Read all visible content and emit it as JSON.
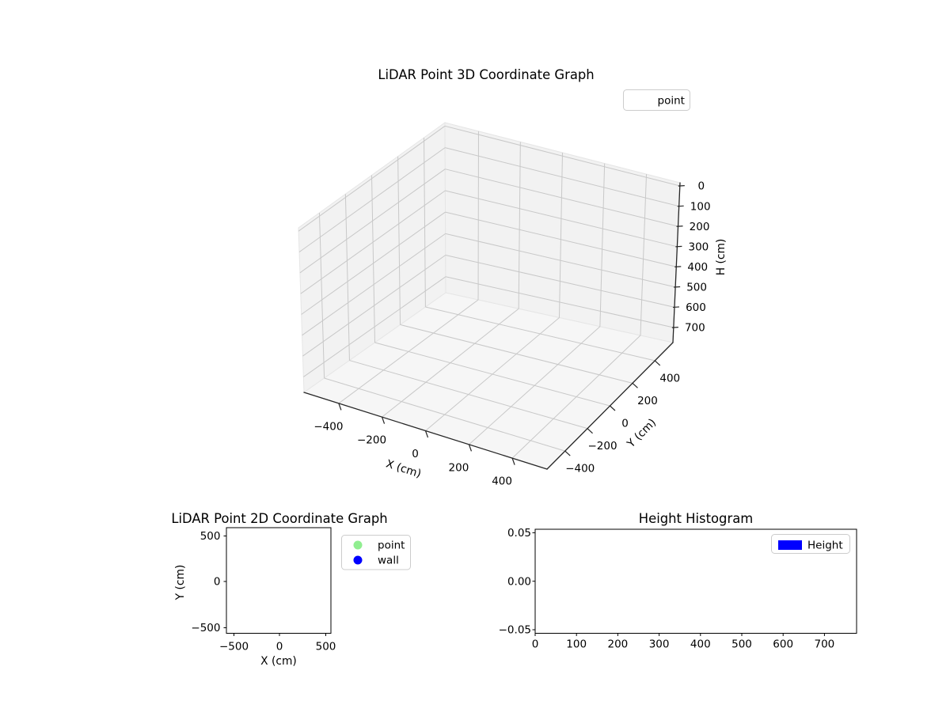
{
  "figure": {
    "background": "#ffffff"
  },
  "plot3d": {
    "title": "LiDAR Point 3D Coordinate Graph",
    "legend": {
      "label": "point"
    },
    "x_axis": {
      "label": "X (cm)",
      "ticks": [
        "−400",
        "−200",
        "0",
        "200",
        "400"
      ]
    },
    "y_axis": {
      "label": "Y (cm)",
      "ticks": [
        "−400",
        "−200",
        "0",
        "200",
        "400"
      ]
    },
    "h_axis": {
      "label": "H (cm)",
      "ticks": [
        "0",
        "100",
        "200",
        "300",
        "400",
        "500",
        "600",
        "700"
      ]
    }
  },
  "plot2d": {
    "title": "LiDAR Point 2D Coordinate Graph",
    "x_axis": {
      "label": "X (cm)",
      "ticks": [
        "−500",
        "0",
        "500"
      ]
    },
    "y_axis": {
      "label": "Y (cm)",
      "ticks": [
        "500",
        "0",
        "−500"
      ]
    },
    "legend": [
      {
        "label": "point",
        "color": "#90ee90"
      },
      {
        "label": "wall",
        "color": "#0000ff"
      }
    ]
  },
  "histogram": {
    "title": "Height Histogram",
    "x_ticks": [
      "0",
      "100",
      "200",
      "300",
      "400",
      "500",
      "600",
      "700"
    ],
    "y_ticks": [
      "0.05",
      "0.00",
      "−0.05"
    ],
    "legend": {
      "label": "Height",
      "color": "#0000ff"
    }
  },
  "chart_data": [
    {
      "type": "scatter",
      "projection": "3d",
      "title": "LiDAR Point 3D Coordinate Graph",
      "xlabel": "X (cm)",
      "ylabel": "Y (cm)",
      "zlabel": "H (cm)",
      "xlim": [
        -560,
        560
      ],
      "ylim": [
        -560,
        560
      ],
      "zlim": [
        0,
        700
      ],
      "zaxis_inverted": true,
      "grid": true,
      "legend_position": "upper right",
      "series": [
        {
          "name": "point",
          "points": []
        }
      ]
    },
    {
      "type": "scatter",
      "title": "LiDAR Point 2D Coordinate Graph",
      "xlabel": "X (cm)",
      "ylabel": "Y (cm)",
      "xlim": [
        -560,
        560
      ],
      "ylim": [
        -560,
        560
      ],
      "grid": false,
      "legend_position": "upper right outside",
      "series": [
        {
          "name": "point",
          "color": "#90ee90",
          "points": []
        },
        {
          "name": "wall",
          "color": "#0000ff",
          "points": []
        }
      ]
    },
    {
      "type": "bar",
      "title": "Height Histogram",
      "xlabel": "",
      "ylabel": "",
      "xlim": [
        0,
        776
      ],
      "ylim": [
        -0.055,
        0.055
      ],
      "grid": false,
      "legend_position": "upper right",
      "series": [
        {
          "name": "Height",
          "color": "#0000ff",
          "values": []
        }
      ]
    }
  ]
}
